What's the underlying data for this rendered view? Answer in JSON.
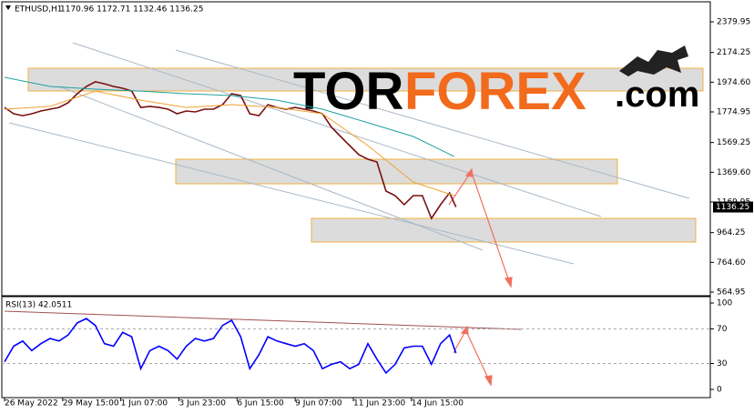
{
  "chart_data": [
    {
      "type": "line",
      "title": "ETHUSD,H1",
      "subtitle": "1170.96 1172.71 1132.46 1136.25",
      "watermark": [
        "TOR",
        "FOREX",
        ".com"
      ],
      "x": [
        0,
        10,
        20,
        30,
        40,
        50,
        60,
        70,
        80,
        90,
        100,
        110,
        120,
        130,
        140,
        150,
        160,
        170,
        180,
        190,
        200,
        210,
        220,
        230,
        240,
        250,
        260,
        270,
        280,
        290,
        300,
        310,
        320,
        330,
        340,
        350,
        360,
        370,
        380,
        390,
        400,
        410,
        420,
        430,
        440,
        450,
        460,
        470,
        480,
        490,
        497
      ],
      "xlim": [
        -3,
        777
      ],
      "xticks": [
        {
          "value": 0,
          "label": "26 May 2022"
        },
        {
          "value": 64,
          "label": "29 May 15:00"
        },
        {
          "value": 128,
          "label": "1 Jun 07:00"
        },
        {
          "value": 192,
          "label": "3 Jun 23:00"
        },
        {
          "value": 256,
          "label": "6 Jun 15:00"
        },
        {
          "value": 320,
          "label": "9 Jun 07:00"
        },
        {
          "value": 384,
          "label": "11 Jun 23:00"
        },
        {
          "value": 448,
          "label": "14 Jun 15:00"
        }
      ],
      "ylim": [
        540.5,
        2502.2
      ],
      "yticks": [
        2379.95,
        2174.25,
        {
          "value": 1974.6,
          "label": "1974.60"
        },
        1774.95,
        1569.25,
        {
          "value": 1369.6,
          "label": "1369.60"
        },
        1169.95,
        964.25,
        {
          "value": 764.6,
          "label": "764.60"
        },
        564.95
      ],
      "last_price": 1136.25,
      "series": [
        {
          "color": "#7a1010",
          "values": [
            1805,
            1763,
            1750,
            1763,
            1781,
            1793,
            1805,
            1836,
            1897,
            1946,
            1977,
            1964,
            1946,
            1934,
            1915,
            1805,
            1812,
            1805,
            1793,
            1763,
            1781,
            1775,
            1793,
            1793,
            1824,
            1897,
            1885,
            1763,
            1750,
            1824,
            1805,
            1793,
            1805,
            1793,
            1781,
            1763,
            1671,
            1610,
            1549,
            1488,
            1457,
            1439,
            1243,
            1213,
            1152,
            1213,
            1213,
            1060,
            1152,
            1231,
            1136.25
          ]
        },
        {
          "color": "#f0a030",
          "x": [
            0,
            50,
            100,
            150,
            200,
            250,
            300,
            350,
            400,
            450,
            495
          ],
          "values": [
            1793,
            1812,
            1915,
            1854,
            1805,
            1824,
            1805,
            1763,
            1549,
            1304,
            1213
          ]
        },
        {
          "color": "#20a0a0",
          "x": [
            0,
            50,
            100,
            150,
            200,
            250,
            300,
            350,
            400,
            450,
            495
          ],
          "values": [
            2007,
            1946,
            1928,
            1915,
            1897,
            1885,
            1854,
            1793,
            1702,
            1610,
            1476
          ]
        }
      ]
    },
    {
      "type": "line",
      "title": "RSI(13) 42.0511",
      "x": [
        0,
        10,
        20,
        30,
        40,
        50,
        60,
        70,
        80,
        90,
        100,
        110,
        120,
        130,
        140,
        150,
        160,
        170,
        180,
        190,
        200,
        210,
        220,
        230,
        240,
        250,
        260,
        270,
        280,
        290,
        300,
        310,
        320,
        330,
        340,
        350,
        360,
        370,
        380,
        390,
        400,
        410,
        420,
        430,
        440,
        450,
        460,
        470,
        480,
        490,
        497
      ],
      "xlim": [
        -3,
        777
      ],
      "ylim": [
        -9.5,
        107.4
      ],
      "yticks": [
        100,
        70,
        30,
        0
      ],
      "series": [
        {
          "color": "#0000ff",
          "values": [
            32,
            50,
            56,
            45,
            53,
            59,
            56,
            63,
            77,
            82,
            74,
            53,
            50,
            66,
            61,
            24,
            45,
            50,
            45,
            35,
            50,
            59,
            56,
            59,
            74,
            80,
            61,
            24,
            40,
            61,
            56,
            53,
            50,
            53,
            45,
            24,
            29,
            32,
            24,
            29,
            53,
            35,
            19,
            29,
            48,
            50,
            50,
            29,
            53,
            63,
            42.0511
          ]
        }
      ]
    }
  ]
}
